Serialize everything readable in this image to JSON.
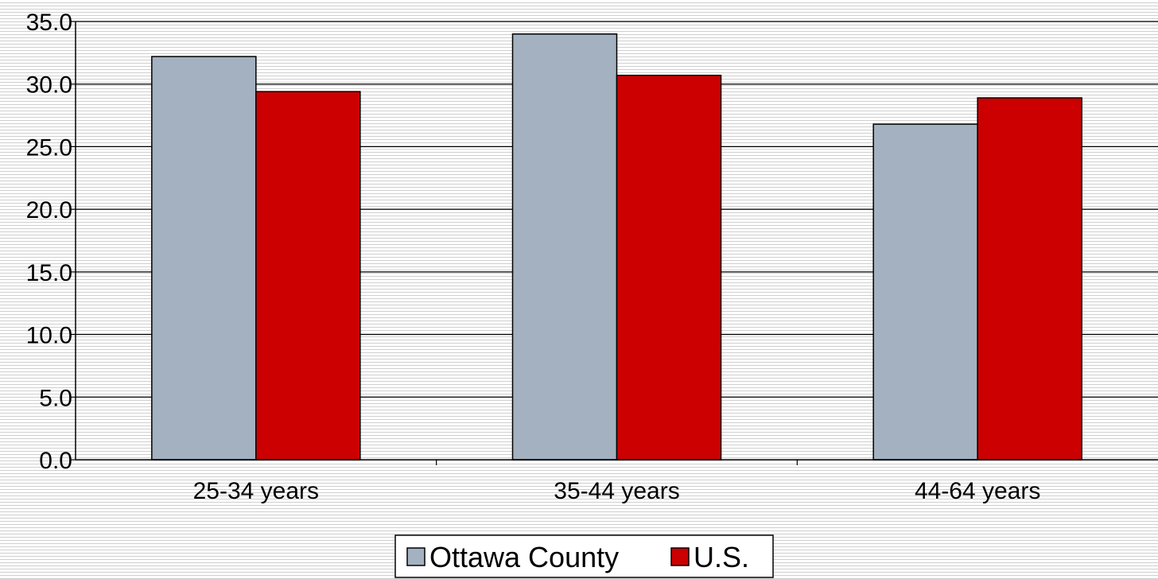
{
  "chart_data": {
    "type": "bar",
    "categories": [
      "25-34 years",
      "35-44 years",
      "44-64 years"
    ],
    "series": [
      {
        "name": "Ottawa County",
        "color": "#a3b1c0",
        "values": [
          32.2,
          34.0,
          26.8
        ]
      },
      {
        "name": "U.S.",
        "color": "#cc0000",
        "values": [
          29.4,
          30.7,
          28.9
        ]
      }
    ],
    "ylim": [
      0,
      35
    ],
    "yticks": [
      0,
      5,
      10,
      15,
      20,
      25,
      30,
      35
    ],
    "ytick_labels": [
      "0.0",
      "5.0",
      "10.0",
      "15.0",
      "20.0",
      "25.0",
      "30.0",
      "35.0"
    ],
    "grid": true,
    "legend_position": "bottom",
    "title": "",
    "xlabel": "",
    "ylabel": ""
  }
}
